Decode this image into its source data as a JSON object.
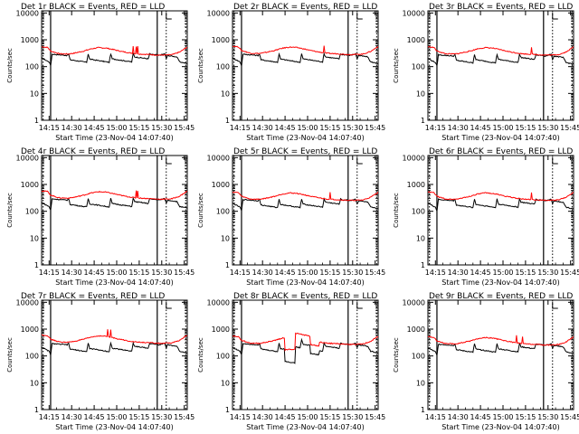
{
  "panel_titles": [
    "Det 1r BLACK = Events, RED = LLD",
    "Det 2r BLACK = Events, RED = LLD",
    "Det 3r BLACK = Events, RED = LLD",
    "Det 4r BLACK = Events, RED = LLD",
    "Det 5r BLACK = Events, RED = LLD",
    "Det 6r BLACK = Events, RED = LLD",
    "Det 7r BLACK = Events, RED = LLD",
    "Det 8r BLACK = Events, RED = LLD",
    "Det 9r BLACK = Events, RED = LLD"
  ],
  "chart_data": {
    "type": "line",
    "layout": "3x3 grid",
    "xlabel": "Start Time (23-Nov-04 14:07:40)",
    "ylabel": "Counts/sec",
    "y_scale": "log",
    "ylim": [
      1,
      12000
    ],
    "xlim": [
      "14:10",
      "15:47"
    ],
    "x_ticks": [
      "14:15",
      "14:30",
      "14:45",
      "15:00",
      "15:15",
      "15:30",
      "15:45"
    ],
    "y_ticks": [
      "1",
      "10",
      "100",
      "1000",
      "10000"
    ],
    "solid_markers": [
      "14:16",
      "15:27"
    ],
    "dotted_markers": [
      "14:11",
      "15:33",
      "15:46"
    ],
    "colors": {
      "events": "#000000",
      "lld": "#ff0000"
    },
    "series_templates": {
      "lld": {
        "x": [
          "14:10",
          "14:14",
          "14:16",
          "14:22",
          "14:28",
          "14:32",
          "14:38",
          "14:43",
          "14:48",
          "14:53",
          "14:58",
          "15:03",
          "15:08",
          "15:13",
          "15:18",
          "15:23",
          "15:27",
          "15:32",
          "15:37",
          "15:42",
          "15:47"
        ],
        "y": [
          550,
          520,
          380,
          300,
          295,
          320,
          380,
          460,
          510,
          490,
          430,
          370,
          330,
          300,
          290,
          280,
          270,
          270,
          280,
          350,
          540
        ]
      },
      "events": {
        "x": [
          "14:10",
          "14:15",
          "14:16",
          "14:17",
          "14:27",
          "14:28",
          "14:29",
          "14:40",
          "14:41",
          "14:42",
          "14:55",
          "14:56",
          "14:57",
          "15:10",
          "15:11",
          "15:12",
          "15:21",
          "15:22",
          "15:23",
          "15:27",
          "15:28",
          "15:32",
          "15:33",
          "15:34",
          "15:40",
          "15:42",
          "15:47"
        ],
        "y": [
          210,
          150,
          110,
          290,
          260,
          290,
          180,
          145,
          300,
          190,
          145,
          300,
          195,
          150,
          300,
          230,
          195,
          300,
          280,
          275,
          260,
          300,
          200,
          260,
          230,
          150,
          130
        ]
      }
    },
    "panels": [
      {
        "lld_scale": 1.0,
        "events_scale": 1.0,
        "spikes": [
          "15:11",
          "15:13",
          "15:14"
        ]
      },
      {
        "lld_scale": 1.05,
        "events_scale": 1.0,
        "spikes": [
          "15:11"
        ]
      },
      {
        "lld_scale": 1.0,
        "events_scale": 0.95,
        "spikes": [
          "15:19"
        ]
      },
      {
        "lld_scale": 1.05,
        "events_scale": 1.0,
        "spikes": [
          "15:13",
          "15:14"
        ]
      },
      {
        "lld_scale": 0.95,
        "events_scale": 0.95,
        "spikes": [
          "15:15"
        ]
      },
      {
        "lld_scale": 0.95,
        "events_scale": 0.95,
        "spikes": [
          "15:19"
        ]
      },
      {
        "lld_scale": 1.1,
        "events_scale": 1.0,
        "spikes": [
          "14:54",
          "14:56"
        ]
      },
      {
        "lld_scale": 1.0,
        "events_scale": 1.0,
        "spikes": [],
        "anomaly": true
      },
      {
        "lld_scale": 0.95,
        "events_scale": 0.95,
        "spikes": [
          "15:09",
          "15:13"
        ]
      }
    ]
  }
}
